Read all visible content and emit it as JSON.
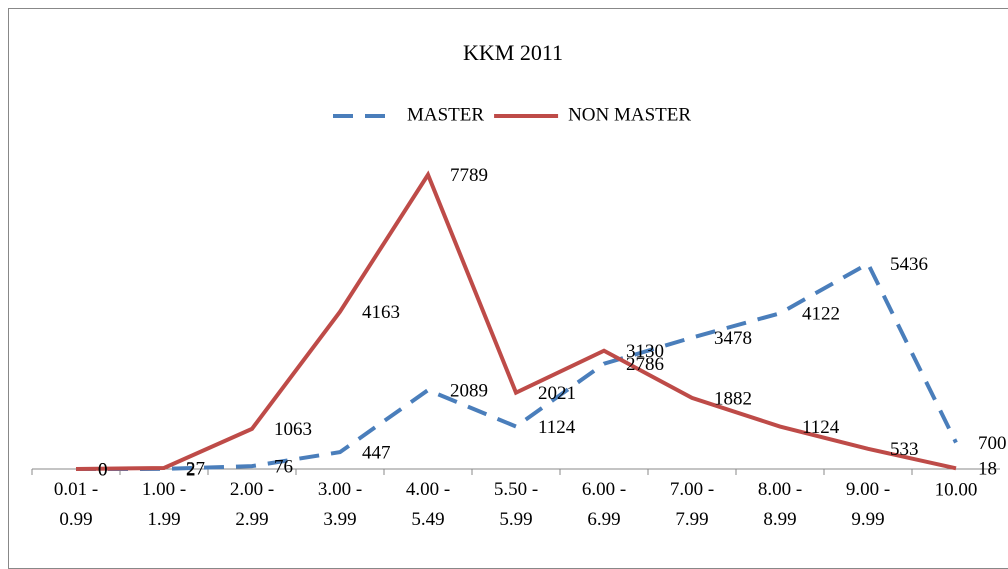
{
  "chart_data": {
    "type": "line",
    "title": "KKM 2011",
    "categories": [
      "0.01 - 0.99",
      "1.00 - 1.99",
      "2.00 - 2.99",
      "3.00 - 3.99",
      "4.00 - 5.49",
      "5.50 - 5.99",
      "6.00 - 6.99",
      "7.00 - 7.99",
      "8.00 - 8.99",
      "9.00 - 9.99",
      "10.00"
    ],
    "series": [
      {
        "name": "MASTER",
        "color": "#4a7ebb",
        "dashed": true,
        "values": [
          0,
          2,
          76,
          447,
          2089,
          1124,
          2786,
          3478,
          4122,
          5436,
          700
        ]
      },
      {
        "name": "NON MASTER",
        "color": "#be4b48",
        "dashed": false,
        "values": [
          0,
          27,
          1063,
          4163,
          7789,
          2021,
          3130,
          1882,
          1124,
          533,
          18
        ]
      }
    ],
    "ylim": [
      0,
      9000
    ],
    "legend": "top",
    "data_labels": true
  }
}
